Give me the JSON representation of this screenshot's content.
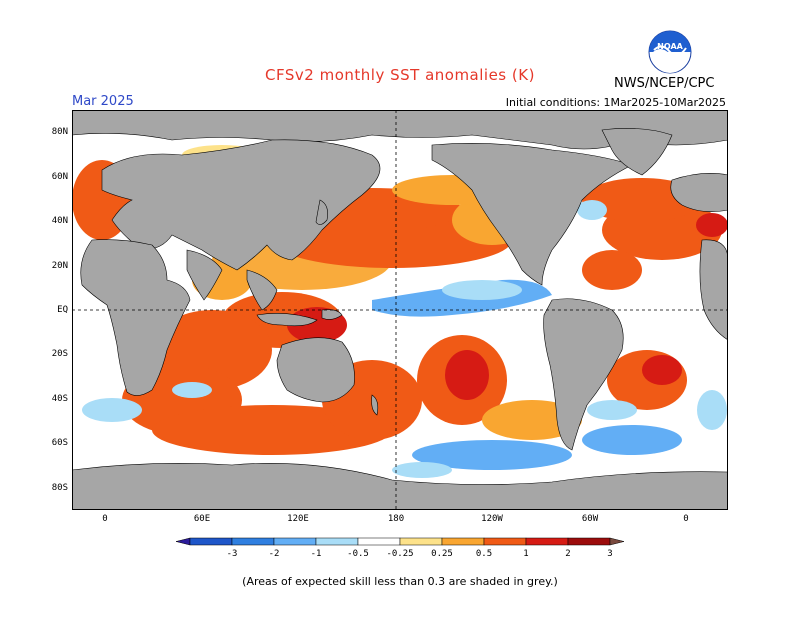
{
  "title": "CFSv2 monthly SST anomalies (K)",
  "forecast_month": "Mar 2025",
  "initial_conditions": "Initial conditions: 1Mar2025-10Mar2025",
  "agency": "NWS/NCEP/CPC",
  "logo_text": "NOAA",
  "footnote": "(Areas of expected skill less than 0.3 are shaded in grey.)",
  "axes": {
    "lat_labels": [
      "80N",
      "60N",
      "40N",
      "20N",
      "EQ",
      "20S",
      "40S",
      "60S",
      "80S"
    ],
    "lon_labels": [
      "0",
      "60E",
      "120E",
      "180",
      "120W",
      "60W",
      "0"
    ]
  },
  "legend": {
    "tick_labels": [
      "-3",
      "-2",
      "-1",
      "-0.5",
      "-0.25",
      "0.25",
      "0.5",
      "1",
      "2",
      "3"
    ],
    "colors": [
      "#2b1b9a",
      "#1e56c9",
      "#2f7fe0",
      "#62aef5",
      "#a9ddf7",
      "#ffffff",
      "#fde28a",
      "#f9a631",
      "#f05a16",
      "#d61b14",
      "#9c0c0c",
      "#7a4a3e"
    ]
  },
  "colors": {
    "land": "#a6a6a6",
    "ocean_neutral": "#ffffff",
    "title": "#e5382a",
    "date": "#2f49c8"
  }
}
